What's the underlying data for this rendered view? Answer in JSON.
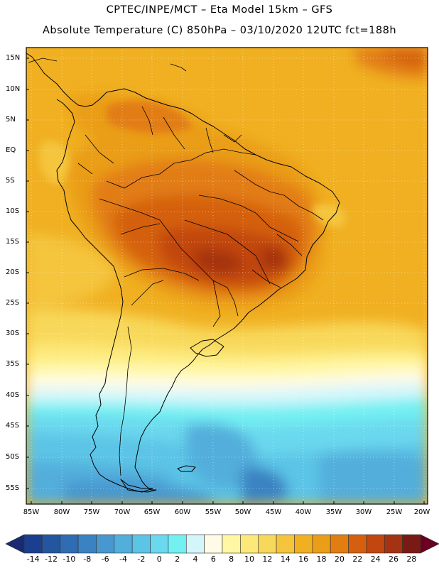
{
  "header": {
    "line1": "CPTEC/INPE/MCT –  Eta Model 15km – GFS",
    "line2": "Absolute Temperature (C) 850hPa – 03/10/2020 12UTC fct=188h"
  },
  "map": {
    "region": "South America",
    "lat_labels": [
      "15N",
      "10N",
      "5N",
      "EQ",
      "5S",
      "10S",
      "15S",
      "20S",
      "25S",
      "30S",
      "35S",
      "40S",
      "45S",
      "50S",
      "55S"
    ],
    "lon_labels": [
      "85W",
      "80W",
      "75W",
      "70W",
      "65W",
      "60W",
      "55W",
      "50W",
      "45W",
      "40W",
      "35W",
      "30W",
      "25W",
      "20W"
    ],
    "lat_range": [
      -57.5,
      16.3
    ],
    "lon_range": [
      -86,
      -20
    ]
  },
  "colorbar": {
    "labels": [
      "-14",
      "-12",
      "-10",
      "-8",
      "-6",
      "-4",
      "-2",
      "0",
      "2",
      "4",
      "6",
      "8",
      "10",
      "12",
      "14",
      "16",
      "18",
      "20",
      "22",
      "24",
      "26",
      "28"
    ],
    "colors": [
      "#1a3f8f",
      "#2456a0",
      "#2f6cb2",
      "#3a82c2",
      "#4698cf",
      "#52aedb",
      "#5cc4e6",
      "#6ad8ee",
      "#72f0f2",
      "#d4f6fb",
      "#fffbe6",
      "#fff7a3",
      "#fde97a",
      "#f8d85a",
      "#f4c53c",
      "#f0b022",
      "#ea9d17",
      "#e27d12",
      "#d4600f",
      "#c2460f",
      "#a33311",
      "#7a1a14"
    ],
    "under_color": "#1a2a70",
    "over_color": "#6b0020"
  }
}
